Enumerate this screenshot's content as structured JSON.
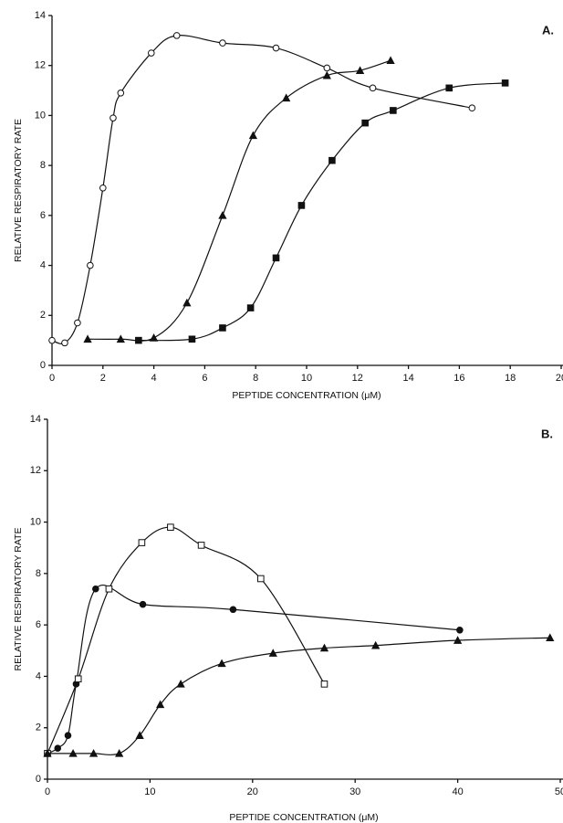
{
  "chart_data": [
    {
      "type": "line",
      "annotation": "A.",
      "xlabel": "PEPTIDE CONCENTRATION (μM)",
      "ylabel": "RELATIVE RESPIRATORY RATE",
      "xlim": [
        0,
        20
      ],
      "xticks": [
        0,
        2,
        4,
        6,
        8,
        10,
        12,
        14,
        16,
        18,
        20
      ],
      "ylim": [
        0,
        14
      ],
      "yticks": [
        0,
        2,
        4,
        6,
        8,
        10,
        12,
        14
      ],
      "series": [
        {
          "marker": "circle-open",
          "color": "#111111",
          "x": [
            0,
            0.5,
            1,
            1.5,
            2,
            2.4,
            2.7,
            3.9,
            4.9,
            6.7,
            8.8,
            10.8,
            12.6,
            16.5
          ],
          "values": [
            1.0,
            0.9,
            1.7,
            4.0,
            7.1,
            9.9,
            10.9,
            12.5,
            13.2,
            12.9,
            12.7,
            11.9,
            11.1,
            10.3
          ]
        },
        {
          "marker": "triangle-filled",
          "color": "#111111",
          "x": [
            1.4,
            2.7,
            4,
            5.3,
            6.7,
            7.9,
            9.2,
            10.8,
            12.1,
            13.3
          ],
          "values": [
            1.05,
            1.05,
            1.1,
            2.5,
            6.0,
            9.2,
            10.7,
            11.6,
            11.8,
            12.2
          ]
        },
        {
          "marker": "square-filled",
          "color": "#111111",
          "x": [
            3.4,
            5.5,
            6.7,
            7.8,
            8.8,
            9.8,
            11,
            12.3,
            13.4,
            15.6,
            17.8
          ],
          "values": [
            1.0,
            1.05,
            1.5,
            2.3,
            4.3,
            6.4,
            8.2,
            9.7,
            10.2,
            11.1,
            11.3
          ]
        }
      ]
    },
    {
      "type": "line",
      "annotation": "B.",
      "xlabel": "PEPTIDE CONCENTRATION (μM)",
      "ylabel": "RELATIVE RESPIRATORY RATE",
      "xlim": [
        0,
        50
      ],
      "xticks": [
        0,
        10,
        20,
        30,
        40,
        50
      ],
      "ylim": [
        0,
        14
      ],
      "yticks": [
        0,
        2,
        4,
        6,
        8,
        10,
        12,
        14
      ],
      "series": [
        {
          "marker": "circle-filled",
          "color": "#111111",
          "x": [
            0,
            1,
            2,
            2.8,
            4.7,
            9.3,
            18.1,
            40.2
          ],
          "values": [
            1.0,
            1.2,
            1.7,
            3.7,
            7.4,
            6.8,
            6.6,
            5.8
          ]
        },
        {
          "marker": "square-open",
          "color": "#111111",
          "x": [
            0,
            3,
            6,
            9.2,
            12,
            15,
            20.8,
            27
          ],
          "values": [
            1.0,
            3.9,
            7.4,
            9.2,
            9.8,
            9.1,
            7.8,
            3.7
          ]
        },
        {
          "marker": "triangle-filled",
          "color": "#111111",
          "x": [
            0,
            2.5,
            4.5,
            7,
            9,
            11,
            13,
            17,
            22,
            27,
            32,
            40,
            49
          ],
          "values": [
            1.0,
            1.0,
            1.0,
            1.0,
            1.7,
            2.9,
            3.7,
            4.5,
            4.9,
            5.1,
            5.2,
            5.4,
            5.5
          ]
        }
      ]
    }
  ]
}
